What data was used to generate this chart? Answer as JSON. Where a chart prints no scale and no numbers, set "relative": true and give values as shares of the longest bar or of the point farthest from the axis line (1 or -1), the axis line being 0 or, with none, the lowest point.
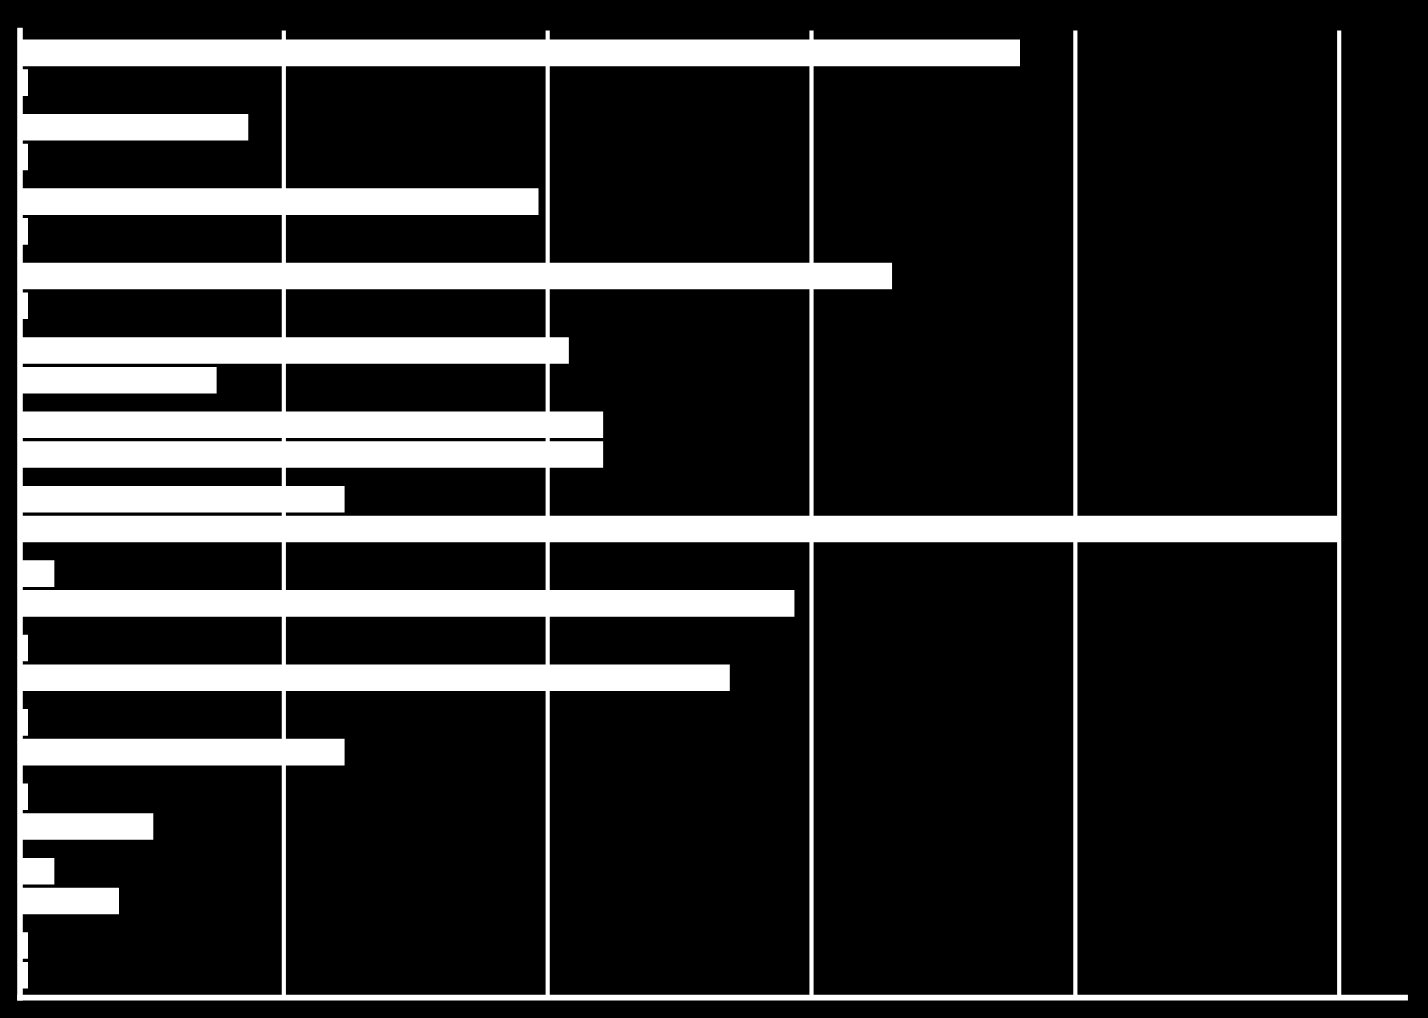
{
  "chart_data": {
    "type": "bar",
    "orientation": "horizontal",
    "relative": true,
    "grid": "x",
    "categories": [
      null,
      null,
      null,
      null,
      null,
      null,
      null,
      null,
      null,
      null,
      null,
      null,
      null
    ],
    "series": [
      {
        "color": "#ffffff",
        "values": [
          0.757,
          0.172,
          0.392,
          0.66,
          0.415,
          0.441,
          0.245,
          0.025,
          0.005,
          0.005,
          0.005,
          0.025,
          0.005
        ]
      },
      {
        "color": "#ffffff",
        "values": [
          0.005,
          0.005,
          0.005,
          0.005,
          0.148,
          0.441,
          1,
          0.586,
          0.537,
          0.245,
          0.1,
          0.074,
          0.005
        ]
      }
    ]
  }
}
